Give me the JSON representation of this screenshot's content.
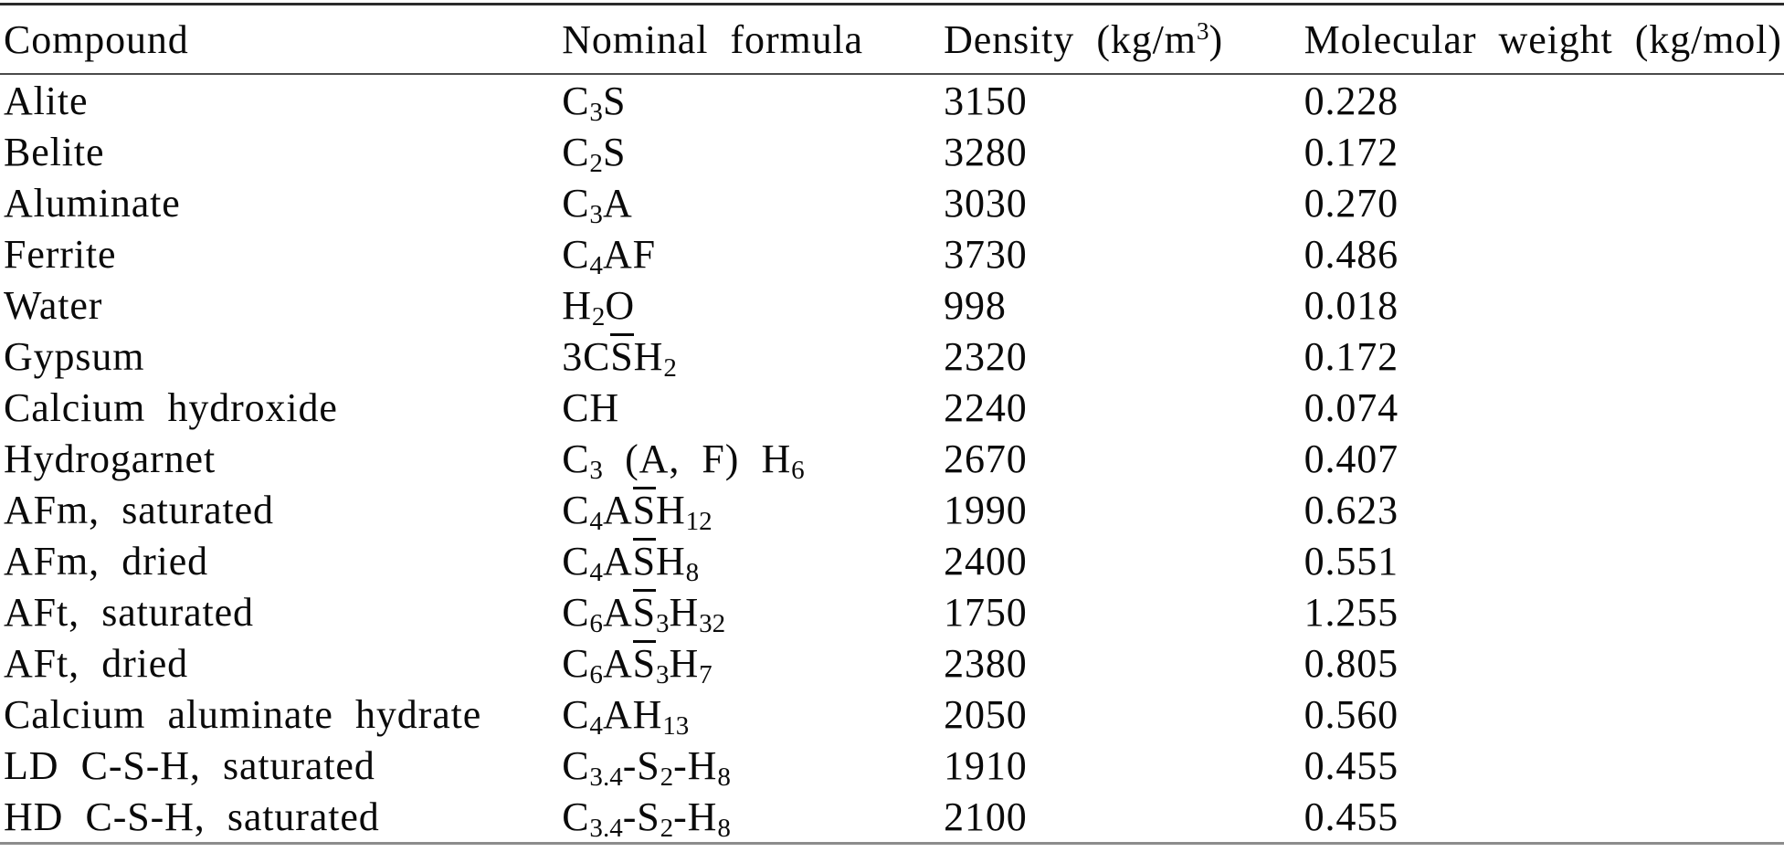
{
  "page": {
    "background": "#ffffff",
    "text_color": "#0a0a0a",
    "top_rule_color": "#2a2a2a",
    "header_rule_color": "#4a4a4a",
    "bottom_rule_color": "#8c8c8c"
  },
  "chart_data": {
    "type": "table",
    "title": "",
    "columns": [
      "Compound",
      "Nominal formula",
      "Density (kg/m3)",
      "Molecular weight (kg/mol)"
    ],
    "rows": [
      [
        "Alite",
        "C3S",
        3150,
        0.228
      ],
      [
        "Belite",
        "C2S",
        3280,
        0.172
      ],
      [
        "Aluminate",
        "C3A",
        3030,
        0.27
      ],
      [
        "Ferrite",
        "C4AF",
        3730,
        0.486
      ],
      [
        "Water",
        "H2O",
        998,
        0.018
      ],
      [
        "Gypsum",
        "3C(S-bar)H2",
        2320,
        0.172
      ],
      [
        "Calcium hydroxide",
        "CH",
        2240,
        0.074
      ],
      [
        "Hydrogarnet",
        "C3 (A, F) H6",
        2670,
        0.407
      ],
      [
        "AFm, saturated",
        "C4A(S-bar)H12",
        1990,
        0.623
      ],
      [
        "AFm, dried",
        "C4A(S-bar)H8",
        2400,
        0.551
      ],
      [
        "AFt, saturated",
        "C6A(S-bar)3H32",
        1750,
        1.255
      ],
      [
        "AFt, dried",
        "C6A(S-bar)3H7",
        2380,
        0.805
      ],
      [
        "Calcium aluminate hydrate",
        "C4AH13",
        2050,
        0.56
      ],
      [
        "LD C-S-H, saturated",
        "C3.4-S2-H8",
        1910,
        0.455
      ],
      [
        "HD C-S-H, saturated",
        "C3.4-S2-H8",
        2100,
        0.455
      ]
    ]
  },
  "table": {
    "headers": {
      "compound": "Compound",
      "formula": "Nominal formula",
      "density_segments": [
        {
          "t": "Density (kg/m"
        },
        {
          "sup": "3"
        },
        {
          "t": ")"
        }
      ],
      "molecular_weight": "Molecular weight (kg/mol)"
    },
    "rows": [
      {
        "compound": "Alite",
        "formula_segments": [
          {
            "t": "C"
          },
          {
            "sub": "3"
          },
          {
            "t": "S"
          }
        ],
        "density": "3150",
        "molecular_weight": "0.228"
      },
      {
        "compound": "Belite",
        "formula_segments": [
          {
            "t": "C"
          },
          {
            "sub": "2"
          },
          {
            "t": "S"
          }
        ],
        "density": "3280",
        "molecular_weight": "0.172"
      },
      {
        "compound": "Aluminate",
        "formula_segments": [
          {
            "t": "C"
          },
          {
            "sub": "3"
          },
          {
            "t": "A"
          }
        ],
        "density": "3030",
        "molecular_weight": "0.270"
      },
      {
        "compound": "Ferrite",
        "formula_segments": [
          {
            "t": "C"
          },
          {
            "sub": "4"
          },
          {
            "t": "AF"
          }
        ],
        "density": "3730",
        "molecular_weight": "0.486"
      },
      {
        "compound": "Water",
        "formula_segments": [
          {
            "t": "H"
          },
          {
            "sub": "2"
          },
          {
            "t": "O"
          }
        ],
        "density": "998",
        "molecular_weight": "0.018"
      },
      {
        "compound": "Gypsum",
        "formula_segments": [
          {
            "t": "3C"
          },
          {
            "bar": "S"
          },
          {
            "t": "H"
          },
          {
            "sub": "2"
          }
        ],
        "density": "2320",
        "molecular_weight": "0.172"
      },
      {
        "compound": "Calcium hydroxide",
        "formula_segments": [
          {
            "t": "CH"
          }
        ],
        "density": "2240",
        "molecular_weight": "0.074"
      },
      {
        "compound": "Hydrogarnet",
        "formula_segments": [
          {
            "t": "C"
          },
          {
            "sub": "3"
          },
          {
            "t": " (A, F) H"
          },
          {
            "sub": "6"
          }
        ],
        "density": "2670",
        "molecular_weight": "0.407"
      },
      {
        "compound": "AFm, saturated",
        "formula_segments": [
          {
            "t": "C"
          },
          {
            "sub": "4"
          },
          {
            "t": "A"
          },
          {
            "bar": "S"
          },
          {
            "t": "H"
          },
          {
            "sub": "12"
          }
        ],
        "density": "1990",
        "molecular_weight": "0.623"
      },
      {
        "compound": "AFm, dried",
        "formula_segments": [
          {
            "t": "C"
          },
          {
            "sub": "4"
          },
          {
            "t": "A"
          },
          {
            "bar": "S"
          },
          {
            "t": "H"
          },
          {
            "sub": "8"
          }
        ],
        "density": "2400",
        "molecular_weight": "0.551"
      },
      {
        "compound": "AFt, saturated",
        "formula_segments": [
          {
            "t": "C"
          },
          {
            "sub": "6"
          },
          {
            "t": "A"
          },
          {
            "bar": "S"
          },
          {
            "sub": "3"
          },
          {
            "t": "H"
          },
          {
            "sub": "32"
          }
        ],
        "density": "1750",
        "molecular_weight": "1.255"
      },
      {
        "compound": "AFt, dried",
        "formula_segments": [
          {
            "t": "C"
          },
          {
            "sub": "6"
          },
          {
            "t": "A"
          },
          {
            "bar": "S"
          },
          {
            "sub": "3"
          },
          {
            "t": "H"
          },
          {
            "sub": "7"
          }
        ],
        "density": "2380",
        "molecular_weight": "0.805"
      },
      {
        "compound": "Calcium aluminate hydrate",
        "formula_segments": [
          {
            "t": "C"
          },
          {
            "sub": "4"
          },
          {
            "t": "AH"
          },
          {
            "sub": "13"
          }
        ],
        "density": "2050",
        "molecular_weight": "0.560"
      },
      {
        "compound": "LD C-S-H, saturated",
        "formula_segments": [
          {
            "t": "C"
          },
          {
            "sub": "3.4"
          },
          {
            "t": "-S"
          },
          {
            "sub": "2"
          },
          {
            "t": "-H"
          },
          {
            "sub": "8"
          }
        ],
        "density": "1910",
        "molecular_weight": "0.455"
      },
      {
        "compound": "HD C-S-H, saturated",
        "formula_segments": [
          {
            "t": "C"
          },
          {
            "sub": "3.4"
          },
          {
            "t": "-S"
          },
          {
            "sub": "2"
          },
          {
            "t": "-H"
          },
          {
            "sub": "8"
          }
        ],
        "density": "2100",
        "molecular_weight": "0.455"
      }
    ]
  }
}
